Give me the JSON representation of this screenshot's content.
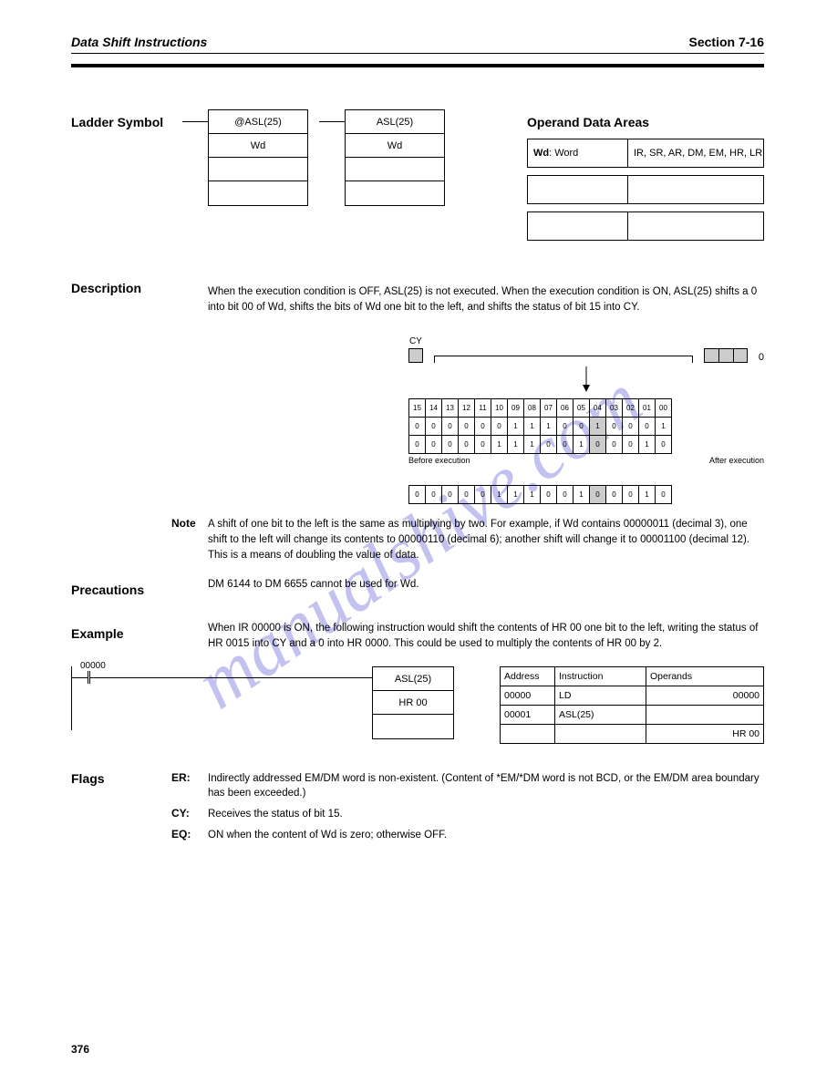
{
  "header": {
    "left": "Data Shift Instructions",
    "right": "Section 7-16",
    "page": "376"
  },
  "wm": "manualshive.com",
  "sec1": {
    "title": "Ladder Symbol",
    "box_a": [
      "@ASL(25)",
      "Wd"
    ],
    "box_b": [
      "ASL(25)",
      "Wd"
    ],
    "op_label": "Operand Data Areas",
    "op": {
      "k": "Wd",
      "v": "IR, SR, AR, DM, EM, HR, LR"
    }
  },
  "desc_h": "Description",
  "desc1": "When the execution condition is OFF, ASL(25) is not executed. When the execution condition is ON, ASL(25) shifts a 0 into bit 00 of Wd, shifts the bits of Wd one bit to the left, and shifts the status of bit 15 into CY.",
  "note1": {
    "k": "Note",
    "v": "A shift of one bit to the left is the same as multiplying by two. For example, if Wd contains 00000011 (decimal 3), one shift to the left will change its contents to 00000110 (decimal 6); another shift will change it to 00001100 (decimal 12). This is a means of doubling the value of data."
  },
  "prec": {
    "h": "Precautions",
    "t": "DM 6144 to DM 6655 cannot be used for Wd."
  },
  "ex_h": "Example",
  "ex_t": "When IR 00000 is ON, the following instruction would shift the contents of HR 00 one bit to the left, writing the status of HR 0015 into CY and a 0 into HR 0000. This could be used to multiply the contents of HR 00 by 2.",
  "fig": {
    "cy": "CY",
    "zero": "0",
    "bits": [
      "15",
      "14",
      "13",
      "12",
      "11",
      "10",
      "09",
      "08",
      "07",
      "06",
      "05",
      "04",
      "03",
      "02",
      "01",
      "00"
    ],
    "r1": [
      "0",
      "0",
      "0",
      "0",
      "0",
      "0",
      "1",
      "1",
      "1",
      "0",
      "0",
      "1",
      "0",
      "0",
      "0",
      "1"
    ],
    "r2": [
      "0",
      "0",
      "0",
      "0",
      "0",
      "1",
      "1",
      "1",
      "0",
      "0",
      "1",
      "0",
      "0",
      "0",
      "1",
      "0"
    ],
    "before": "Before execution",
    "after": "After execution",
    "r3": [
      "0",
      "0",
      "0",
      "0",
      "0",
      "1",
      "1",
      "1",
      "0",
      "0",
      "1",
      "0",
      "0",
      "0",
      "1",
      "0"
    ]
  },
  "ex2": {
    "contact": "00000",
    "box": [
      "ASL(25)",
      "HR 00"
    ],
    "tbl": {
      "cols": [
        "Address",
        "Instruction",
        "Operands"
      ],
      "rows": [
        [
          "00000",
          "LD",
          "00000"
        ],
        [
          "00001",
          "ASL(25)",
          ""
        ],
        [
          "",
          "",
          "HR   00"
        ]
      ]
    }
  },
  "flags": {
    "h": "Flags",
    "er": {
      "k": "ER:",
      "v": "Indirectly addressed EM/DM word is non-existent. (Content of *EM/*DM word is not BCD, or the EM/DM area boundary has been exceeded.)"
    },
    "cy": {
      "k": "CY:",
      "v": "Receives the status of bit 15."
    },
    "eq": {
      "k": "EQ:",
      "v": "ON when the content of Wd is zero; otherwise OFF."
    }
  }
}
